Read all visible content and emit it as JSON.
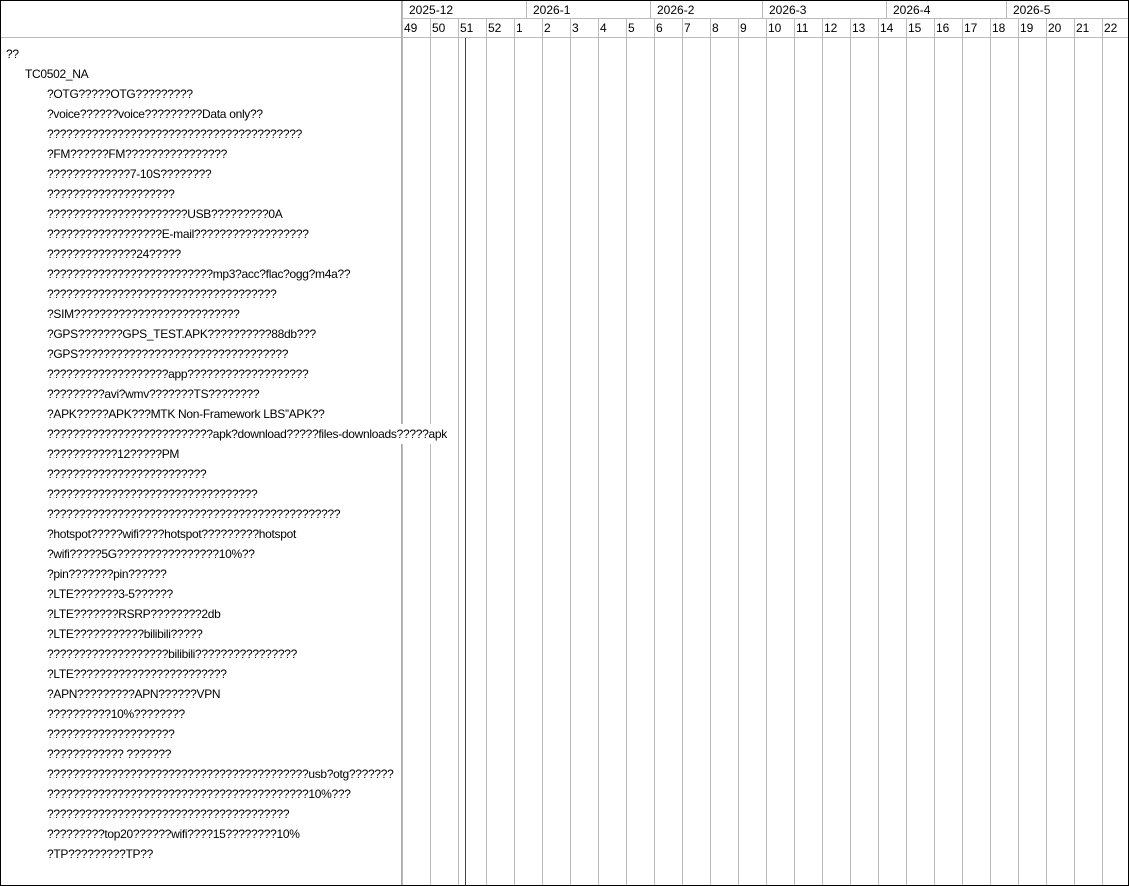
{
  "timeline": {
    "months": [
      {
        "label": "2025-12",
        "days": 31
      },
      {
        "label": "2026-1",
        "days": 31
      },
      {
        "label": "2026-2",
        "days": 28
      },
      {
        "label": "2026-3",
        "days": 31
      },
      {
        "label": "2026-4",
        "days": 30
      },
      {
        "label": "2026-5",
        "days": 31
      }
    ],
    "weeks": [
      "49",
      "50",
      "51",
      "52",
      "1",
      "2",
      "3",
      "4",
      "5",
      "6",
      "7",
      "8",
      "9",
      "10",
      "11",
      "12",
      "13",
      "14",
      "15",
      "16",
      "17",
      "18",
      "19",
      "20",
      "21",
      "22"
    ],
    "today_marker_color": "#e00000",
    "today_week": "51"
  },
  "tree": {
    "root": "??",
    "group": "TC0502_NA",
    "tasks": [
      "?OTG?????OTG?????????",
      "?voice??????voice?????????Data only??",
      "????????????????????????????????????????",
      "?FM??????FM????????????????",
      "?????????????7-10S????????",
      "????????????????????",
      "??????????????????????USB?????????0A",
      "??????????????????E-mail??????????????????",
      "??????????????24?????",
      "??????????????????????????mp3?acc?flac?ogg?m4a??",
      "????????????????????????????????????",
      "?SIM??????????????????????????",
      "?GPS???????GPS_TEST.APK??????????88db???",
      "?GPS?????????????????????????????????",
      "???????????????????app???????????????????",
      "?????????avi?wmv???????TS????????",
      "?APK?????APK???MTK Non-Framework LBS”APK??",
      "??????????????????????????apk?download?????files-downloads?????apk",
      "???????????12?????PM",
      "?????????????????????????",
      "?????????????????????????????????",
      "??????????????????????????????????????????????",
      "?hotspot?????wifi????hotspot?????????hotspot",
      "?wifi?????5G????????????????10%??",
      "?pin???????pin??????",
      "?LTE???????3-5??????",
      "?LTE???????RSRP????????2db",
      "?LTE???????????bilibili?????",
      "???????????????????bilibili????????????????",
      "?LTE????????????????????????",
      "?APN?????????APN??????VPN",
      "??????????10%????????",
      "????????????????????",
      "???????????? ???????",
      "?????????????????????????????????????????usb?otg???????",
      "?????????????????????????????????????????10%???",
      "??????????????????????????????????????",
      "?????????top20??????wifi????15????????10%",
      "?TP?????????TP??"
    ]
  }
}
